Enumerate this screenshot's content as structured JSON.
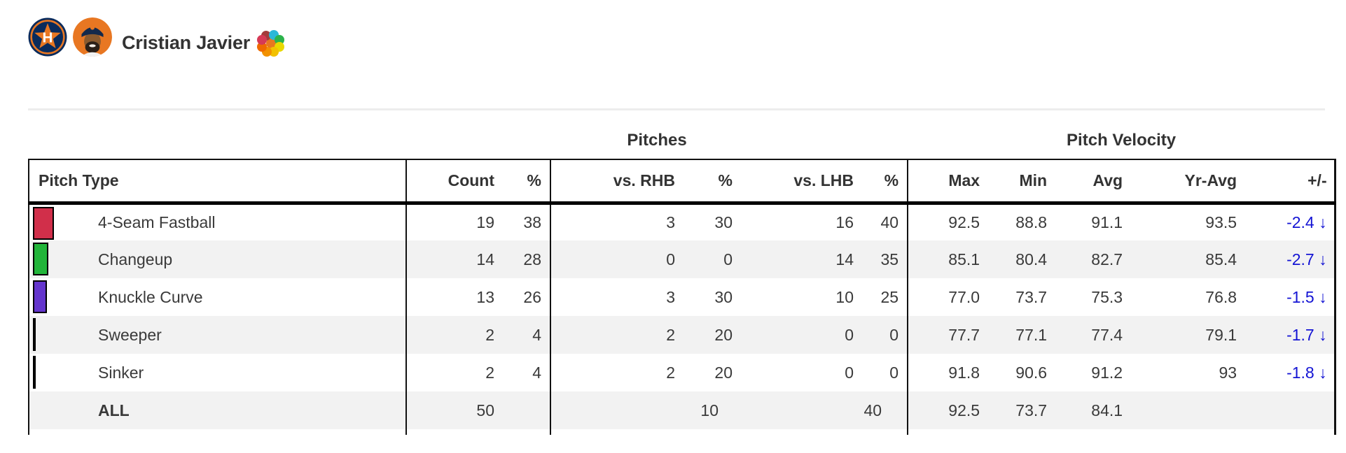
{
  "header": {
    "player_name": "Cristian Javier",
    "icons": [
      "team-logo",
      "player-headshot",
      "pitch-mix-flower"
    ]
  },
  "table": {
    "group_headers": [
      {
        "label": "Pitches"
      },
      {
        "label": "Pitch Velocity"
      }
    ],
    "columns": [
      {
        "key": "pitch",
        "label": "Pitch Type"
      },
      {
        "key": "count",
        "label": "Count"
      },
      {
        "key": "pct",
        "label": "%"
      },
      {
        "key": "rhb",
        "label": "vs. RHB"
      },
      {
        "key": "rhb_pct",
        "label": "%"
      },
      {
        "key": "lhb",
        "label": "vs. LHB"
      },
      {
        "key": "lhb_pct",
        "label": "%"
      },
      {
        "key": "max",
        "label": "Max"
      },
      {
        "key": "min",
        "label": "Min"
      },
      {
        "key": "avg",
        "label": "Avg"
      },
      {
        "key": "yr_avg",
        "label": "Yr-Avg"
      },
      {
        "key": "diff",
        "label": "+/-"
      }
    ],
    "rows": [
      {
        "pitch": "4-Seam Fastball",
        "swatch_color": "#d12f4a",
        "count": "19",
        "pct": "38",
        "rhb": "3",
        "rhb_pct": "30",
        "lhb": "16",
        "lhb_pct": "40",
        "max": "92.5",
        "min": "88.8",
        "avg": "91.1",
        "yr_avg": "93.5",
        "diff": "-2.4",
        "trend": "down"
      },
      {
        "pitch": "Changeup",
        "swatch_color": "#22b53a",
        "count": "14",
        "pct": "28",
        "rhb": "0",
        "rhb_pct": "0",
        "lhb": "14",
        "lhb_pct": "35",
        "max": "85.1",
        "min": "80.4",
        "avg": "82.7",
        "yr_avg": "85.4",
        "diff": "-2.7",
        "trend": "down"
      },
      {
        "pitch": "Knuckle Curve",
        "swatch_color": "#6435cd",
        "count": "13",
        "pct": "26",
        "rhb": "3",
        "rhb_pct": "30",
        "lhb": "10",
        "lhb_pct": "25",
        "max": "77.0",
        "min": "73.7",
        "avg": "75.3",
        "yr_avg": "76.8",
        "diff": "-1.5",
        "trend": "down"
      },
      {
        "pitch": "Sweeper",
        "swatch_color": "#111111",
        "count": "2",
        "pct": "4",
        "rhb": "2",
        "rhb_pct": "20",
        "lhb": "0",
        "lhb_pct": "0",
        "max": "77.7",
        "min": "77.1",
        "avg": "77.4",
        "yr_avg": "79.1",
        "diff": "-1.7",
        "trend": "down"
      },
      {
        "pitch": "Sinker",
        "swatch_color": "#111111",
        "count": "2",
        "pct": "4",
        "rhb": "2",
        "rhb_pct": "20",
        "lhb": "0",
        "lhb_pct": "0",
        "max": "91.8",
        "min": "90.6",
        "avg": "91.2",
        "yr_avg": "93",
        "diff": "-1.8",
        "trend": "down"
      }
    ],
    "totals": {
      "label": "ALL",
      "count": "50",
      "rhb": "10",
      "lhb": "40",
      "max": "92.5",
      "min": "73.7",
      "avg": "84.1"
    }
  },
  "colors": {
    "diff_accent": "#1414d4",
    "row_stripe": "#f2f2f2",
    "table_border": "#111111",
    "team_navy": "#0a2b5c",
    "team_orange": "#e87722"
  },
  "glyphs": {
    "down_arrow": "↓"
  }
}
